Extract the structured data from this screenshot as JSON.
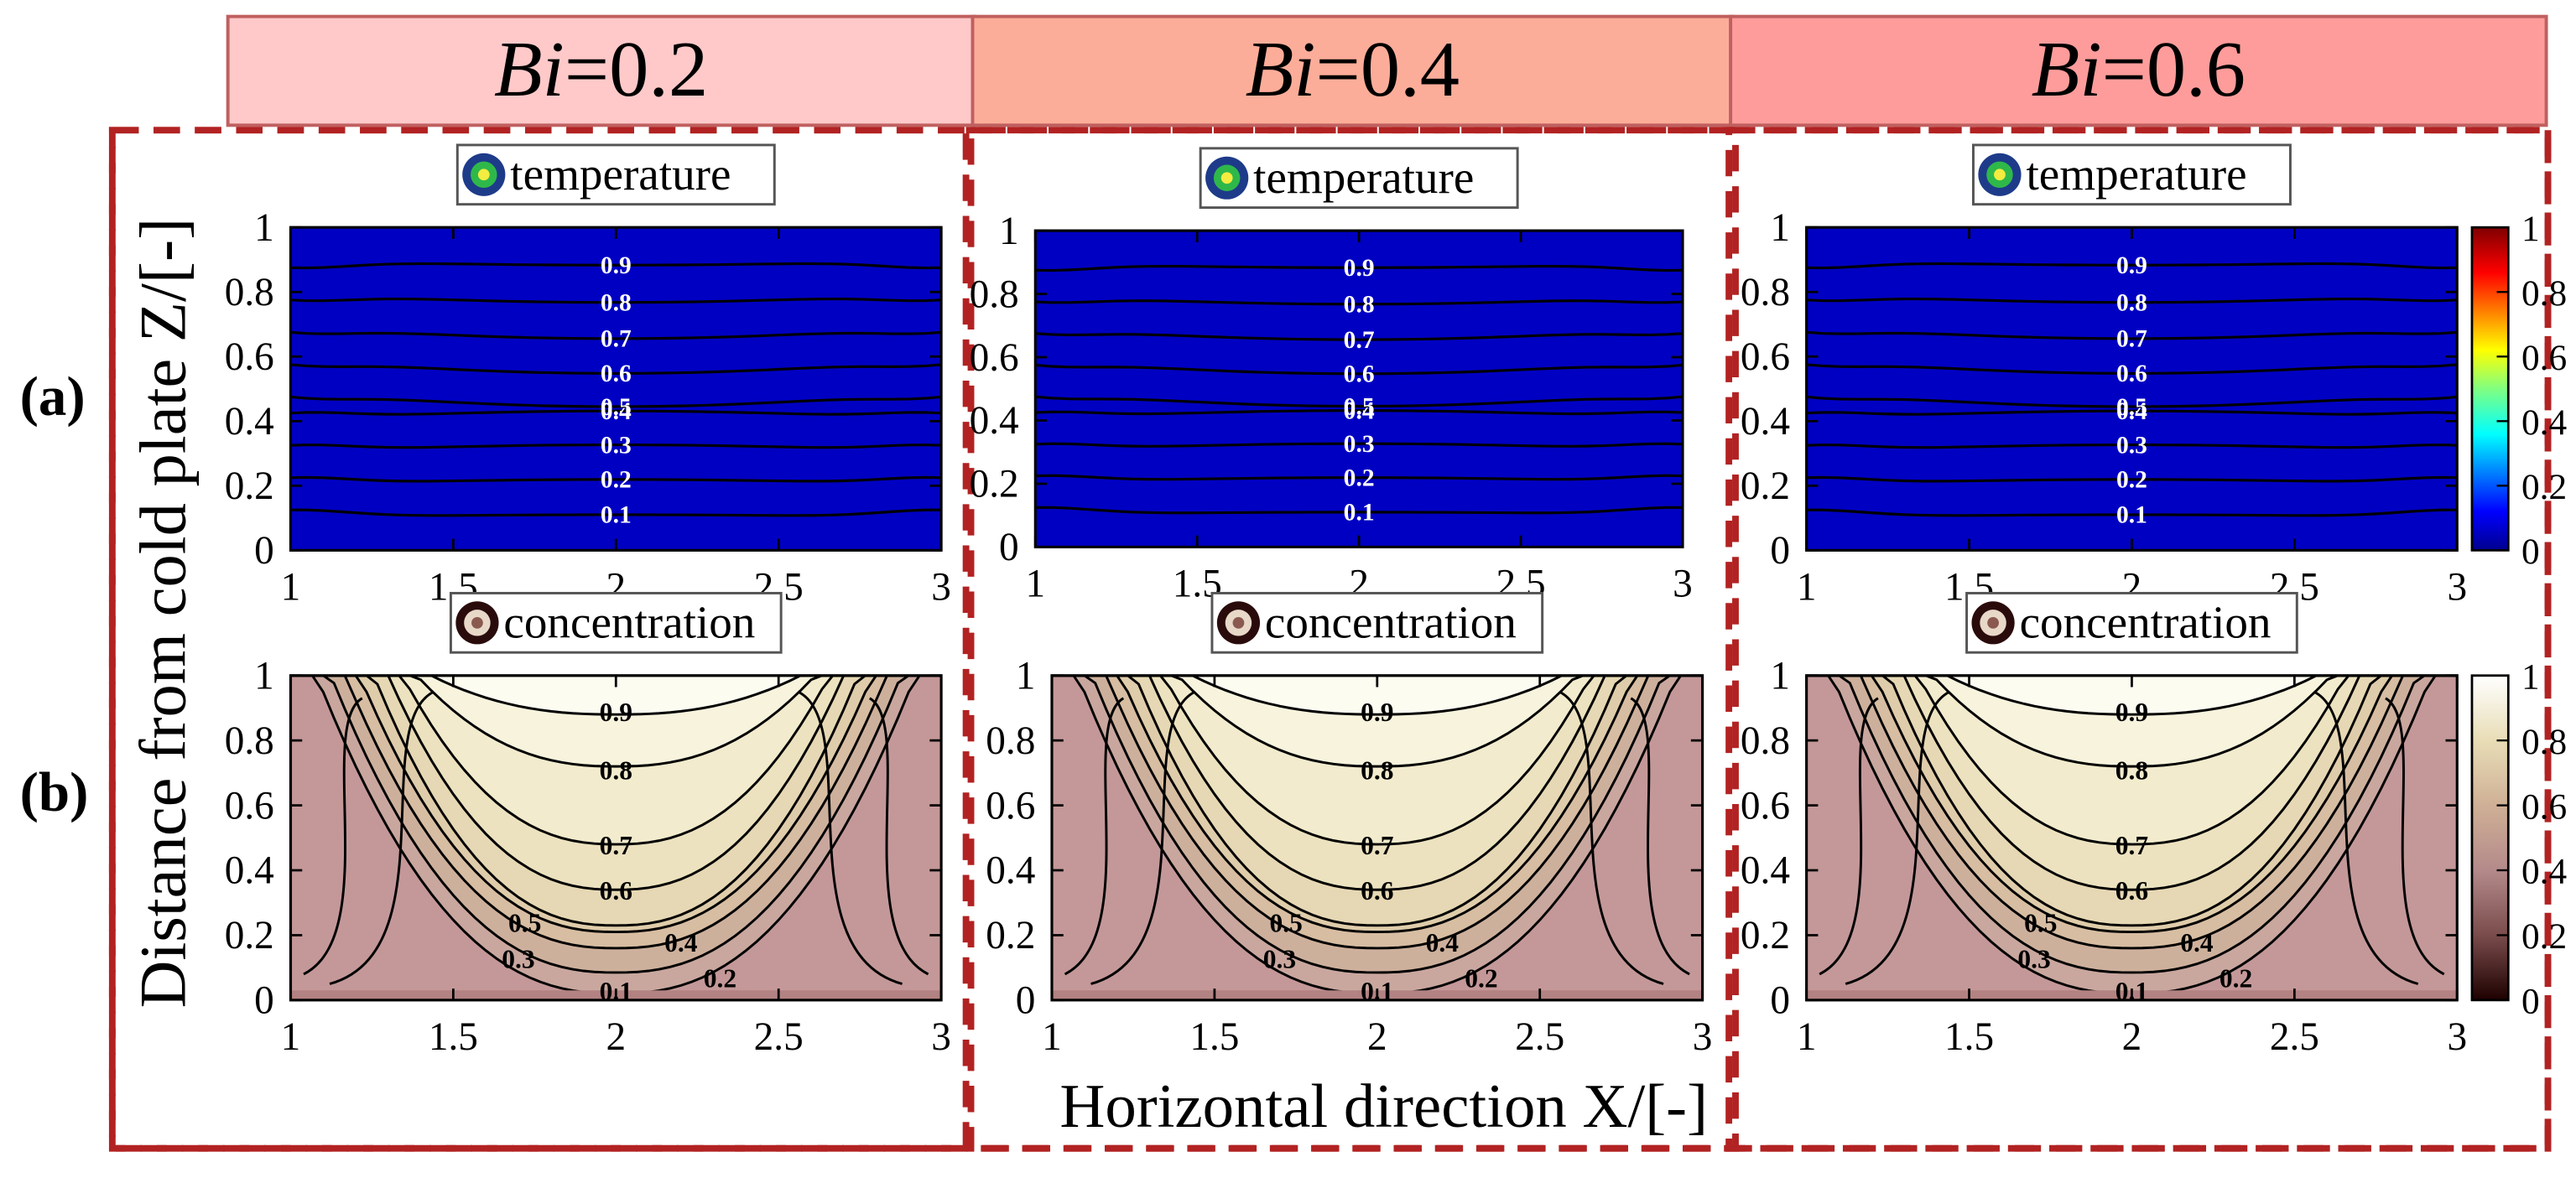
{
  "figure": {
    "columns": [
      {
        "label_italic": "Bi",
        "label_value": "=0.2",
        "color": "#ffc9c9"
      },
      {
        "label_italic": "Bi",
        "label_value": "=0.4",
        "color": "#fcad99"
      },
      {
        "label_italic": "Bi",
        "label_value": "=0.6",
        "color": "#fd9c9b"
      }
    ],
    "row_labels": [
      "(a)",
      "(b)"
    ],
    "ylabel": "Distance from cold plate Z/[-]",
    "xlabel": "Horizontal direction X/[-]",
    "titles": {
      "temperature": "temperature",
      "concentration": "concentration"
    },
    "frame_color": "#b22222"
  },
  "chart_data": [
    {
      "id": "temp-bi-0.2",
      "type": "heatmap",
      "title": "temperature",
      "xlim": [
        1,
        3
      ],
      "ylim": [
        0,
        1
      ],
      "x_ticks": [
        "1",
        "1.5",
        "2",
        "2.5",
        "3"
      ],
      "y_ticks": [
        "0",
        "0.2",
        "0.4",
        "0.6",
        "0.8",
        "1"
      ],
      "contour_levels": [
        0.1,
        0.2,
        0.3,
        0.4,
        0.5,
        0.6,
        0.7,
        0.8,
        0.9
      ],
      "contour_labels": [
        "0.1",
        "0.2",
        "0.3",
        "0.4",
        "0.5",
        "0.6",
        "0.7",
        "0.8",
        "0.9"
      ],
      "colormap": "jet",
      "colorbar": false,
      "bi": 0.2
    },
    {
      "id": "temp-bi-0.4",
      "type": "heatmap",
      "title": "temperature",
      "xlim": [
        1,
        3
      ],
      "ylim": [
        0,
        1
      ],
      "x_ticks": [
        "1",
        "1.5",
        "2",
        "2.5",
        "3"
      ],
      "y_ticks": [
        "0",
        "0.2",
        "0.4",
        "0.6",
        "0.8",
        "1"
      ],
      "contour_levels": [
        0.1,
        0.2,
        0.3,
        0.4,
        0.5,
        0.6,
        0.7,
        0.8,
        0.9
      ],
      "contour_labels": [
        "0.1",
        "0.2",
        "0.3",
        "0.4",
        "0.5",
        "0.6",
        "0.7",
        "0.8",
        "0.9"
      ],
      "colormap": "jet",
      "colorbar": false,
      "bi": 0.4
    },
    {
      "id": "temp-bi-0.6",
      "type": "heatmap",
      "title": "temperature",
      "xlim": [
        1,
        3
      ],
      "ylim": [
        0,
        1
      ],
      "x_ticks": [
        "1",
        "1.5",
        "2",
        "2.5",
        "3"
      ],
      "y_ticks": [
        "0",
        "0.2",
        "0.4",
        "0.6",
        "0.8",
        "1"
      ],
      "contour_levels": [
        0.1,
        0.2,
        0.3,
        0.4,
        0.5,
        0.6,
        0.7,
        0.8,
        0.9
      ],
      "contour_labels": [
        "0.1",
        "0.2",
        "0.3",
        "0.4",
        "0.5",
        "0.6",
        "0.7",
        "0.8",
        "0.9"
      ],
      "colormap": "jet",
      "colorbar": true,
      "colorbar_ticks": [
        "0",
        "0.2",
        "0.4",
        "0.6",
        "0.8",
        "1"
      ],
      "bi": 0.6
    },
    {
      "id": "conc-bi-0.2",
      "type": "heatmap",
      "title": "concentration",
      "xlim": [
        1,
        3
      ],
      "ylim": [
        0,
        1
      ],
      "x_ticks": [
        "1",
        "1.5",
        "2",
        "2.5",
        "3"
      ],
      "y_ticks": [
        "0",
        "0.2",
        "0.4",
        "0.6",
        "0.8",
        "1"
      ],
      "contour_levels": [
        0.1,
        0.2,
        0.3,
        0.4,
        0.5,
        0.6,
        0.7,
        0.8,
        0.9
      ],
      "contour_labels": [
        "0.1",
        "0.2",
        "0.3",
        "0.4",
        "0.5",
        "0.6",
        "0.7",
        "0.8",
        "0.9"
      ],
      "colormap": "pink",
      "colorbar": false,
      "bi": 0.2
    },
    {
      "id": "conc-bi-0.4",
      "type": "heatmap",
      "title": "concentration",
      "xlim": [
        1,
        3
      ],
      "ylim": [
        0,
        1
      ],
      "x_ticks": [
        "1",
        "1.5",
        "2",
        "2.5",
        "3"
      ],
      "y_ticks": [
        "0",
        "0.2",
        "0.4",
        "0.6",
        "0.8",
        "1"
      ],
      "contour_levels": [
        0.1,
        0.2,
        0.3,
        0.4,
        0.5,
        0.6,
        0.7,
        0.8,
        0.9
      ],
      "contour_labels": [
        "0.1",
        "0.2",
        "0.3",
        "0.4",
        "0.5",
        "0.6",
        "0.7",
        "0.8",
        "0.9"
      ],
      "colormap": "pink",
      "colorbar": false,
      "bi": 0.4
    },
    {
      "id": "conc-bi-0.6",
      "type": "heatmap",
      "title": "concentration",
      "xlim": [
        1,
        3
      ],
      "ylim": [
        0,
        1
      ],
      "x_ticks": [
        "1",
        "1.5",
        "2",
        "2.5",
        "3"
      ],
      "y_ticks": [
        "0",
        "0.2",
        "0.4",
        "0.6",
        "0.8",
        "1"
      ],
      "contour_levels": [
        0.1,
        0.2,
        0.3,
        0.4,
        0.5,
        0.6,
        0.7,
        0.8,
        0.9
      ],
      "contour_labels": [
        "0.1",
        "0.2",
        "0.3",
        "0.4",
        "0.5",
        "0.6",
        "0.7",
        "0.8",
        "0.9"
      ],
      "colormap": "pink",
      "colorbar": true,
      "colorbar_ticks": [
        "0",
        "0.2",
        "0.4",
        "0.6",
        "0.8",
        "1"
      ],
      "bi": 0.6
    }
  ]
}
